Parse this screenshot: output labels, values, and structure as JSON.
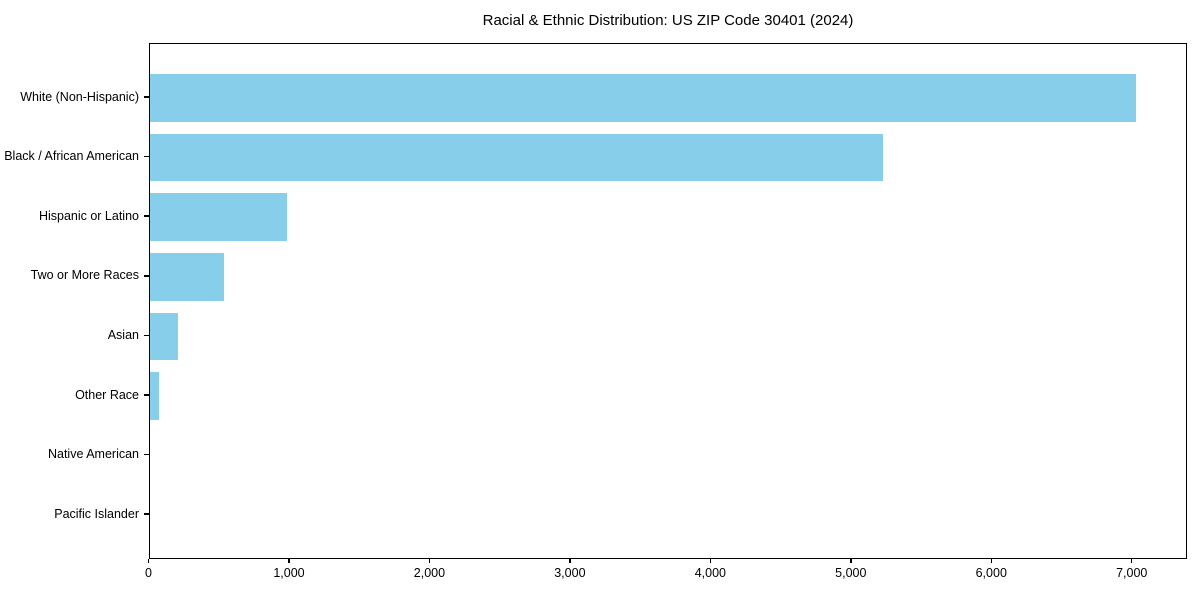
{
  "chart_data": {
    "type": "bar",
    "orientation": "horizontal",
    "title": "Racial & Ethnic Distribution: US ZIP Code 30401 (2024)",
    "categories": [
      "White (Non-Hispanic)",
      "Black / African American",
      "Hispanic or Latino",
      "Two or More Races",
      "Asian",
      "Other Race",
      "Native American",
      "Pacific Islander"
    ],
    "values": [
      7040,
      5230,
      980,
      530,
      200,
      70,
      0,
      0
    ],
    "xlabel": "",
    "ylabel": "",
    "xlim": [
      0,
      7390
    ],
    "x_ticks": [
      0,
      1000,
      2000,
      3000,
      4000,
      5000,
      6000,
      7000
    ],
    "x_tick_labels": [
      "0",
      "1,000",
      "2,000",
      "3,000",
      "4,000",
      "5,000",
      "6,000",
      "7,000"
    ],
    "bar_color": "#87CEEB",
    "axis_color": "#000000",
    "text_color": "#000000",
    "background_color": "#FFFFFF",
    "grid": false,
    "legend": null
  }
}
